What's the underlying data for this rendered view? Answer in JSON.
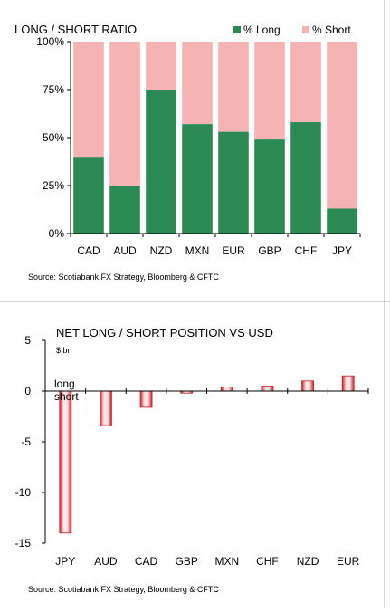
{
  "colors": {
    "long": "#2b8a52",
    "short": "#f6b3b4",
    "net_bar_edge": "#c81e28",
    "net_bar_light": "#fbe6e6",
    "axis": "#000000"
  },
  "chart_data": [
    {
      "type": "bar",
      "stacked": true,
      "title": "LONG / SHORT RATIO",
      "categories": [
        "CAD",
        "AUD",
        "NZD",
        "MXN",
        "EUR",
        "GBP",
        "CHF",
        "JPY"
      ],
      "series": [
        {
          "name": "% Long",
          "values": [
            40,
            25,
            75,
            57,
            53,
            49,
            58,
            13
          ]
        },
        {
          "name": "% Short",
          "values": [
            60,
            75,
            25,
            43,
            47,
            51,
            42,
            87
          ]
        }
      ],
      "ylim": [
        0,
        100
      ],
      "yticks": [
        "0%",
        "25%",
        "50%",
        "75%",
        "100%"
      ],
      "yticks_values": [
        0,
        25,
        50,
        75,
        100
      ],
      "legend": "top-right",
      "grid": false,
      "source": "Source: Scotiabank FX Strategy, Bloomberg & CFTC"
    },
    {
      "type": "bar",
      "title": "NET LONG / SHORT POSITION VS USD",
      "unit": "$ bn",
      "categories": [
        "JPY",
        "AUD",
        "CAD",
        "GBP",
        "MXN",
        "CHF",
        "NZD",
        "EUR"
      ],
      "values": [
        -14,
        -3.4,
        -1.6,
        -0.2,
        0.4,
        0.5,
        1.0,
        1.5
      ],
      "ylim": [
        -15,
        5
      ],
      "yticks": [
        "-15",
        "-10",
        "-5",
        "0",
        "5"
      ],
      "yticks_values": [
        -15,
        -10,
        -5,
        0,
        5
      ],
      "annotations": [
        "long",
        "short"
      ],
      "grid": false,
      "source": "Source: Scotiabank FX Strategy, Bloomberg & CFTC"
    }
  ]
}
